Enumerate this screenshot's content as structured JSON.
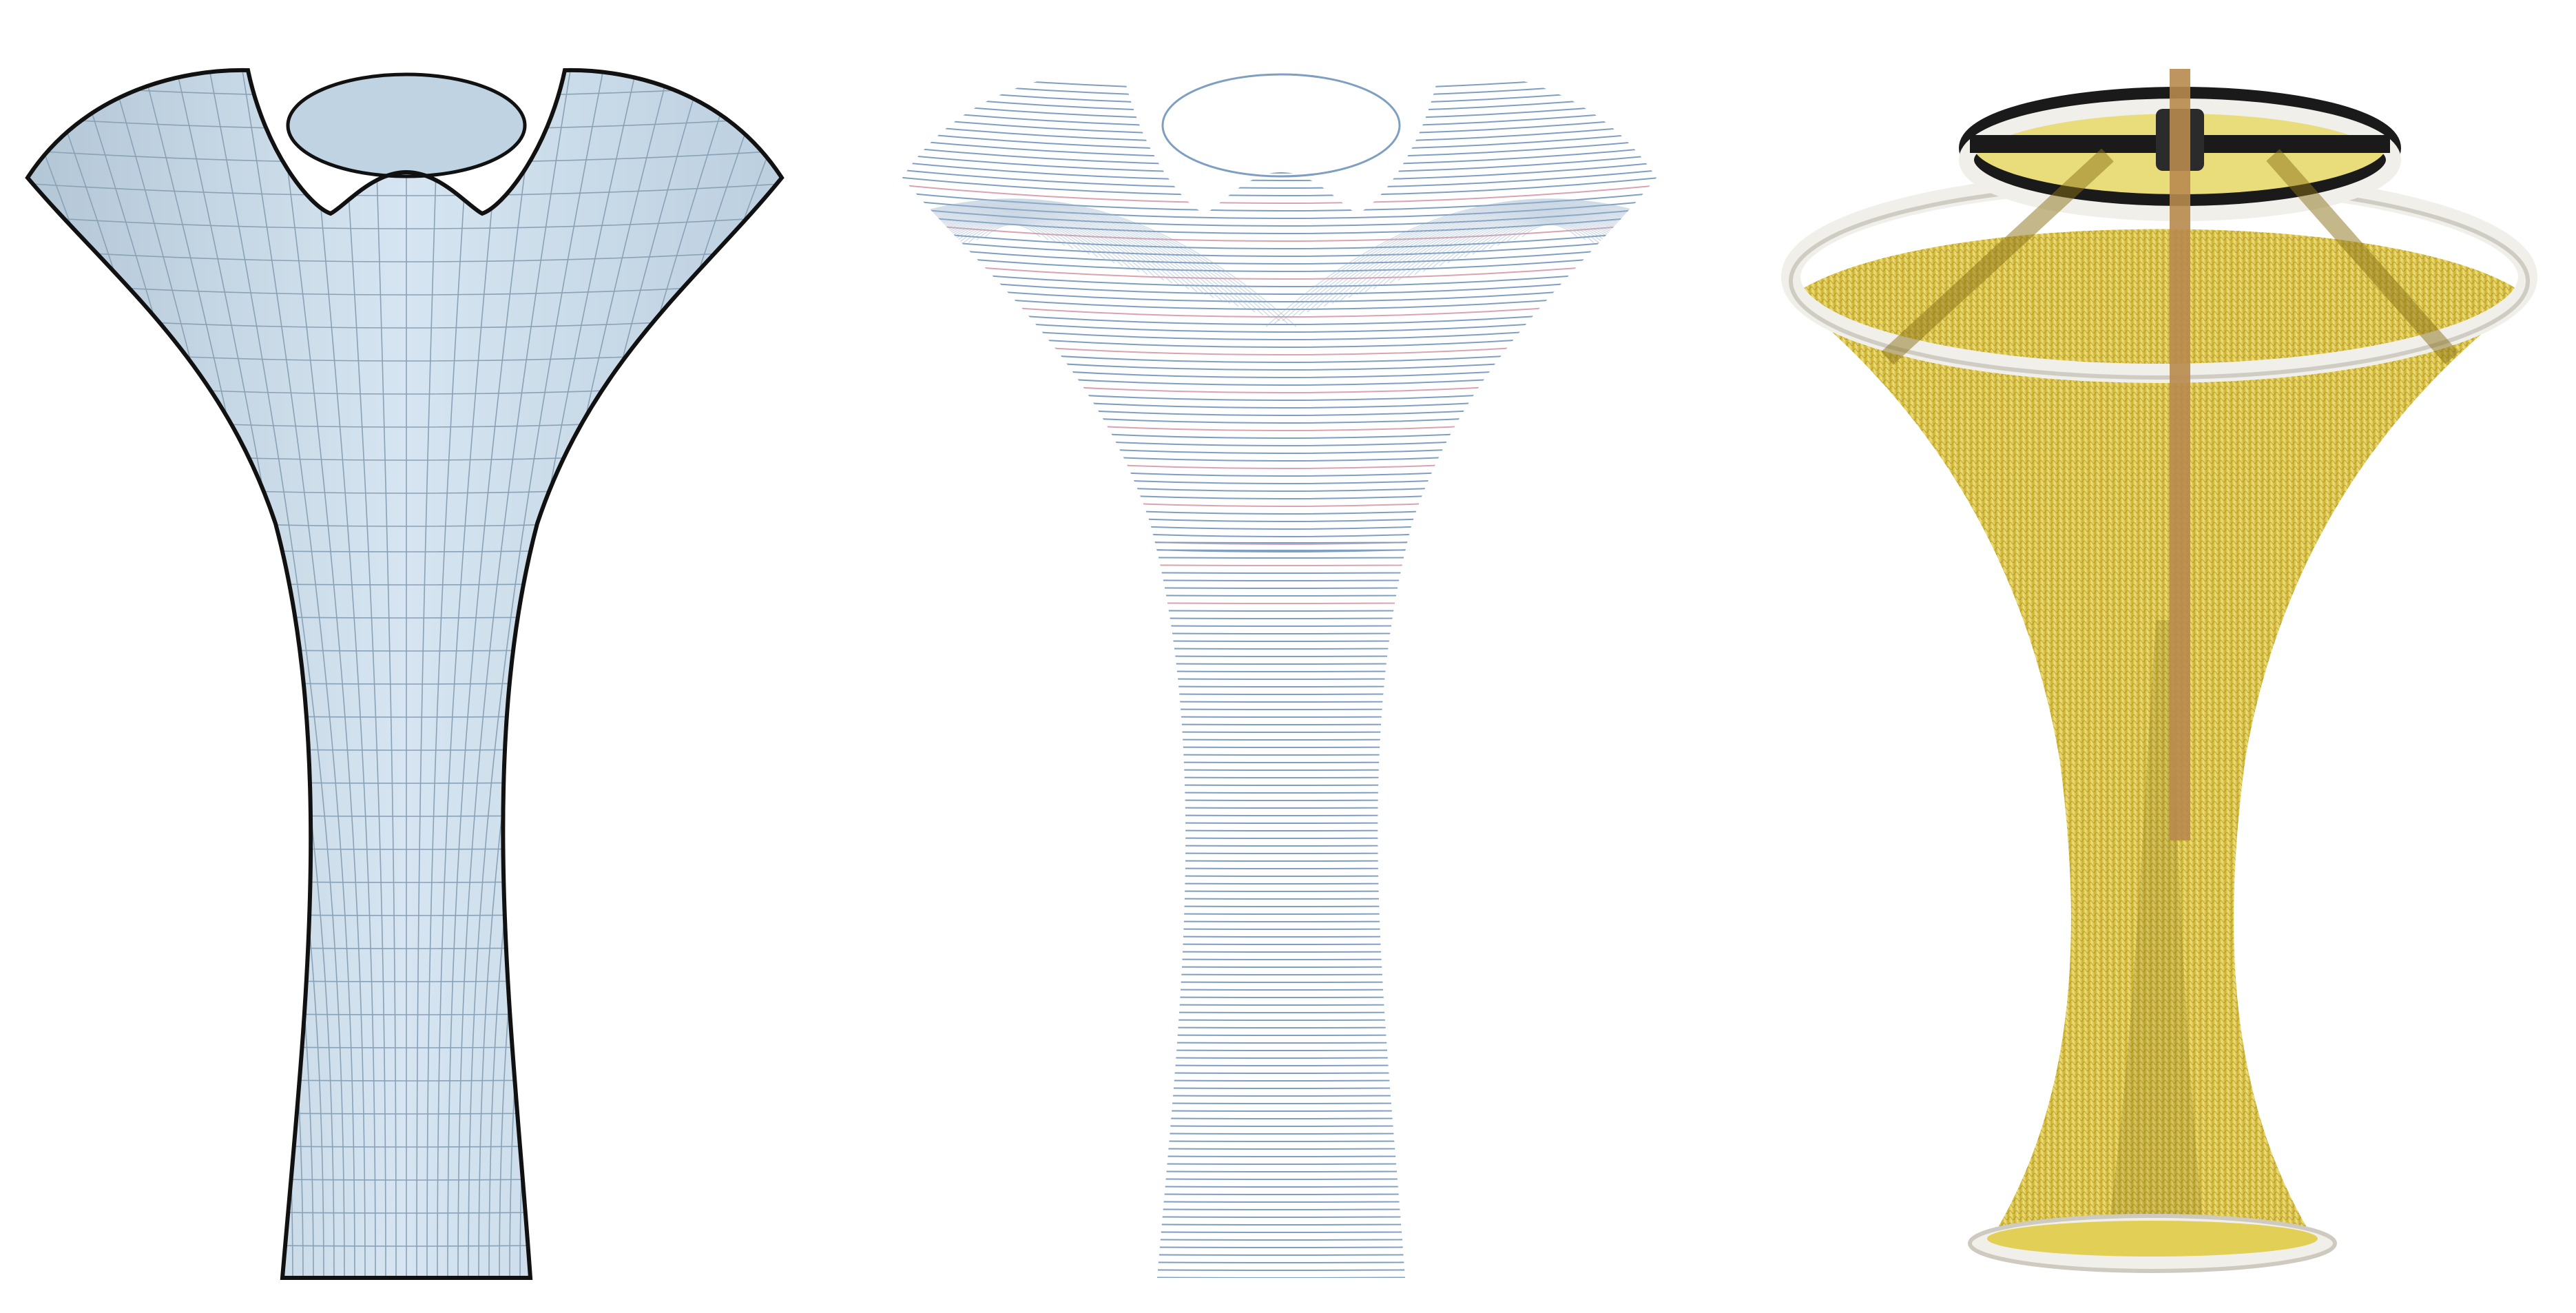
{
  "figure": {
    "panels": [
      {
        "name": "mesh-model-panel",
        "kind": "quad-mesh surface",
        "fill_color": "#cfe0ee",
        "grid_color": "#8aa2b6",
        "outline_color": "#111111"
      },
      {
        "name": "knit-course-lines-panel",
        "kind": "knitting course lines",
        "line_color": "#7f9fc2",
        "accent_color": "#d9a3b0"
      },
      {
        "name": "knitted-prototype-photo-panel",
        "kind": "photograph of knitted prototype",
        "yarn_color": "#e8d14a",
        "rim_color": "#f1efea",
        "frame_color": "#1a1a1a",
        "rod_color": "#b88a4e"
      }
    ]
  }
}
